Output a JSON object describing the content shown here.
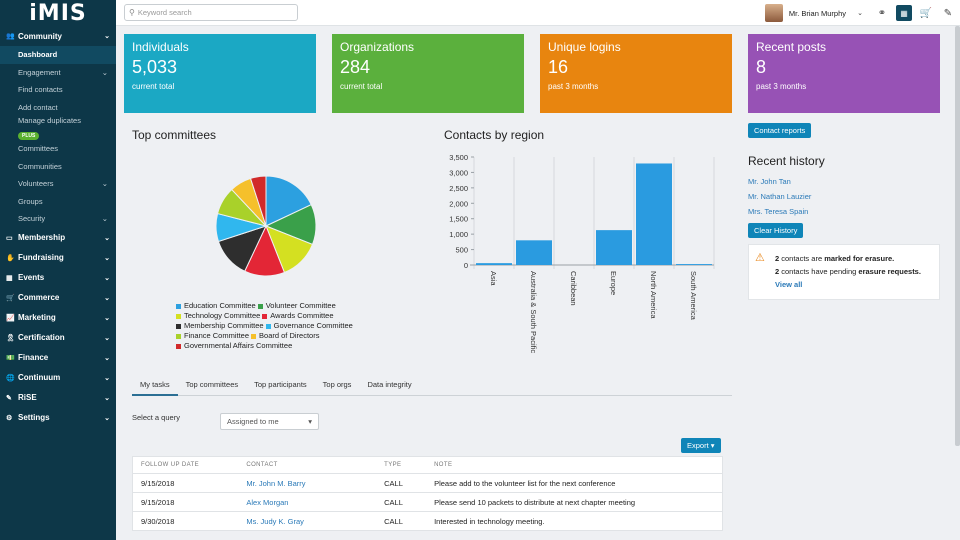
{
  "app": {
    "logo": "iMIS"
  },
  "sidebar": {
    "sections": [
      {
        "label": "Community",
        "icon": "people-icon",
        "glyph": "👥",
        "expanded": true
      },
      {
        "label": "Membership",
        "icon": "id-card-icon",
        "glyph": "▭"
      },
      {
        "label": "Fundraising",
        "icon": "hand-coin-icon",
        "glyph": "✋"
      },
      {
        "label": "Events",
        "icon": "calendar-icon",
        "glyph": "▦"
      },
      {
        "label": "Commerce",
        "icon": "cart-icon",
        "glyph": "🛒"
      },
      {
        "label": "Marketing",
        "icon": "chart-line-icon",
        "glyph": "📈"
      },
      {
        "label": "Certification",
        "icon": "ribbon-icon",
        "glyph": "🎗"
      },
      {
        "label": "Finance",
        "icon": "money-icon",
        "glyph": "💵"
      },
      {
        "label": "Continuum",
        "icon": "globe-icon",
        "glyph": "🌐"
      },
      {
        "label": "RiSE",
        "icon": "edit-square-icon",
        "glyph": "✎"
      },
      {
        "label": "Settings",
        "icon": "gear-icon",
        "glyph": "⚙"
      }
    ],
    "community_items": [
      {
        "label": "Dashboard",
        "active": true
      },
      {
        "label": "Engagement",
        "chevron": true
      },
      {
        "label": "Find contacts"
      },
      {
        "label": "Add contact"
      },
      {
        "label": "Manage duplicates",
        "badge": "PLUS"
      },
      {
        "label": "Committees"
      },
      {
        "label": "Communities"
      },
      {
        "label": "Volunteers",
        "chevron": true
      },
      {
        "label": "Groups"
      },
      {
        "label": "Security",
        "chevron": true
      }
    ]
  },
  "topbar": {
    "search_placeholder": "Keyword search",
    "user_name": "Mr. Brian Murphy",
    "icons": [
      "headset-icon",
      "book-icon",
      "cart-icon",
      "edit-icon"
    ]
  },
  "tiles": [
    {
      "title": "Individuals",
      "value": "5,033",
      "sub": "current total",
      "color": "#1ba8c4"
    },
    {
      "title": "Organizations",
      "value": "284",
      "sub": "current total",
      "color": "#5bb03d"
    },
    {
      "title": "Unique logins",
      "value": "16",
      "sub": "past 3 months",
      "color": "#e8850f"
    },
    {
      "title": "Recent posts",
      "value": "8",
      "sub": "past 3 months",
      "color": "#9752b5"
    }
  ],
  "committees": {
    "title": "Top committees",
    "legend_rows": [
      [
        {
          "label": "Education Committee",
          "color": "#2ca0e0"
        },
        {
          "label": "Volunteer Committee",
          "color": "#3aa04a"
        }
      ],
      [
        {
          "label": "Technology Committee",
          "color": "#d4e021"
        },
        {
          "label": "Awards Committee",
          "color": "#e32636"
        }
      ],
      [
        {
          "label": "Membership Committee",
          "color": "#2e2e2e"
        },
        {
          "label": "Governance Committee",
          "color": "#30b7ee"
        }
      ],
      [
        {
          "label": "Finance Committee",
          "color": "#a9d12a"
        },
        {
          "label": "Board of Directors",
          "color": "#f5c02b"
        }
      ],
      [
        {
          "label": "Governmental Affairs Committee",
          "color": "#d12a2a"
        }
      ]
    ]
  },
  "region_title": "Contacts by region",
  "chart_data": [
    {
      "type": "pie",
      "title": "Top committees",
      "labels": [
        "Education Committee",
        "Volunteer Committee",
        "Technology Committee",
        "Awards Committee",
        "Membership Committee",
        "Governance Committee",
        "Finance Committee",
        "Board of Directors",
        "Governmental Affairs Committee"
      ],
      "values": [
        18,
        13,
        13,
        13,
        13,
        9,
        9,
        7,
        5
      ],
      "colors": [
        "#2ca0e0",
        "#3aa04a",
        "#d4e021",
        "#e32636",
        "#2e2e2e",
        "#30b7ee",
        "#a9d12a",
        "#f5c02b",
        "#d12a2a"
      ],
      "legend": "bottom"
    },
    {
      "type": "bar",
      "title": "Contacts by region",
      "categories": [
        "Asia",
        "Australia & South Pacific",
        "Caribbean",
        "Europe",
        "North America",
        "South America"
      ],
      "values": [
        60,
        800,
        0,
        1130,
        3290,
        30
      ],
      "ylim": [
        0,
        3500
      ],
      "yticks": [
        "0",
        "500",
        "1,000",
        "1,500",
        "2,000",
        "2,500",
        "3,000",
        "3,500"
      ],
      "color": "#2a9be0",
      "grid": "vertical"
    }
  ],
  "right_panel": {
    "contact_reports": "Contact reports",
    "history_title": "Recent history",
    "history": [
      "Mr. John Tan",
      "Mr. Nathan Lauzier",
      "Mrs. Teresa Spain"
    ],
    "clear_history": "Clear History",
    "alert_line1_count": "2",
    "alert_line1_text": " contacts are ",
    "alert_line1_bold": "marked for erasure.",
    "alert_line2_count": "2",
    "alert_line2_text": " contacts have pending ",
    "alert_line2_bold": "erasure requests.",
    "view_all": "View all"
  },
  "tabs": [
    "My tasks",
    "Top committees",
    "Top participants",
    "Top orgs",
    "Data integrity"
  ],
  "query": {
    "label": "Select a query",
    "selected": "Assigned to me"
  },
  "export_label": "Export",
  "tasks": {
    "headers": [
      "FOLLOW UP DATE",
      "CONTACT",
      "TYPE",
      "NOTE"
    ],
    "rows": [
      [
        "9/15/2018",
        "Mr. John M. Barry",
        "CALL",
        "Please add to the volunteer list for the next conference"
      ],
      [
        "9/15/2018",
        "Alex Morgan",
        "CALL",
        "Please send 10 packets to distribute at next chapter meeting"
      ],
      [
        "9/30/2018",
        "Ms. Judy K. Gray",
        "CALL",
        "Interested in technology meeting."
      ]
    ]
  }
}
